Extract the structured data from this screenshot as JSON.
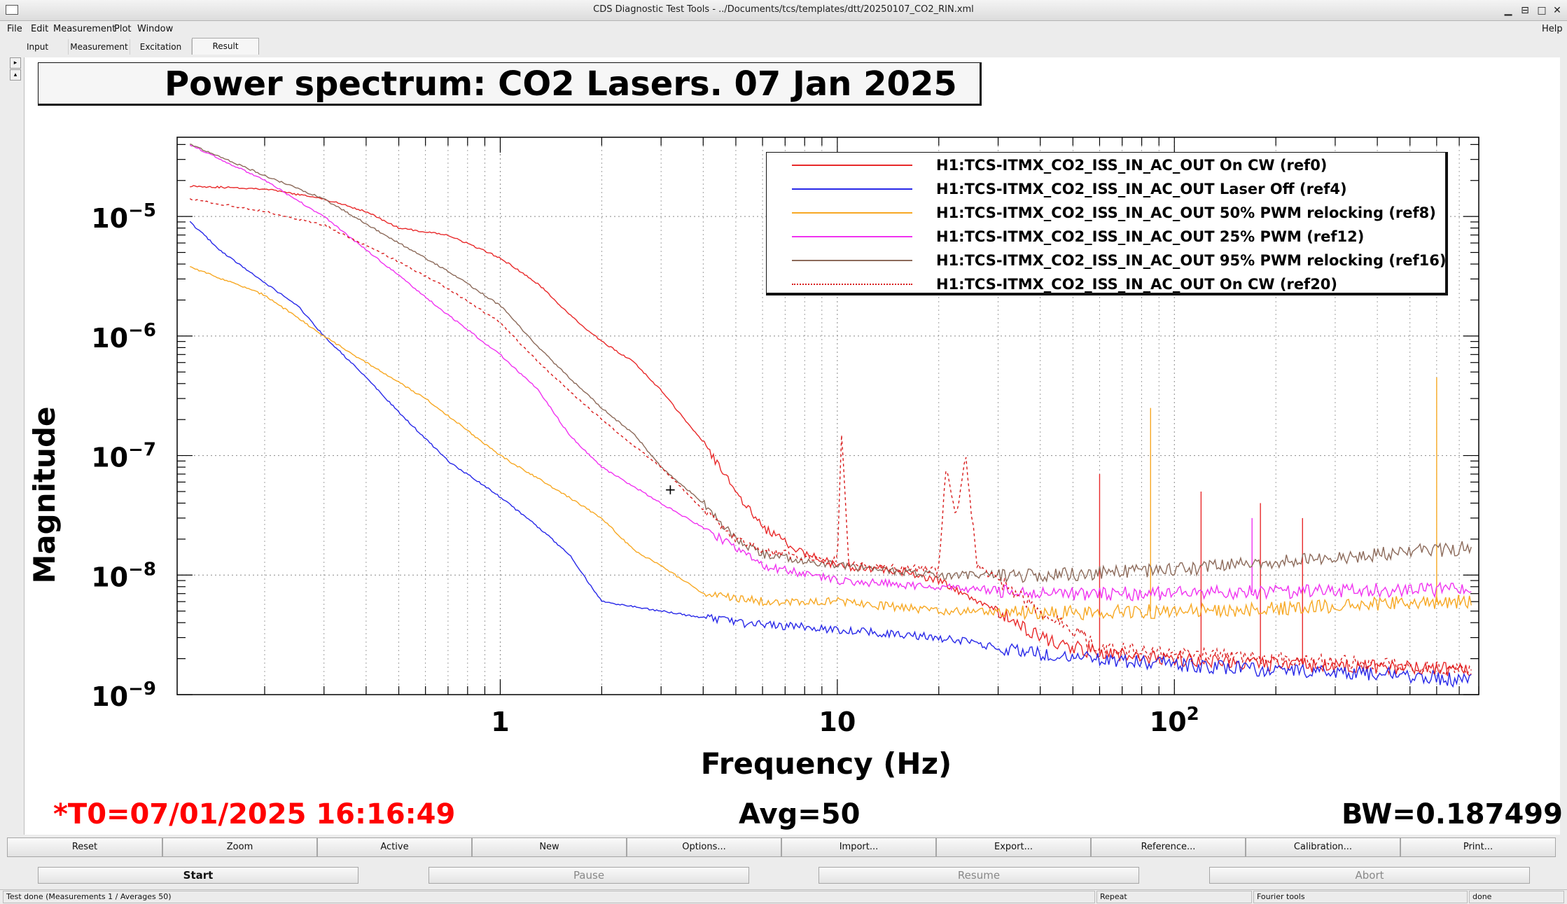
{
  "window": {
    "title": "CDS Diagnostic Test Tools - ../Documents/tcs/templates/dtt/20250107_CO2_RIN.xml"
  },
  "menu": {
    "items": [
      "File",
      "Edit",
      "Measurement",
      "Plot",
      "Window"
    ],
    "help": "Help"
  },
  "tabs": [
    "Input",
    "Measurement",
    "Excitation",
    "Result"
  ],
  "plot": {
    "title": "Power spectrum: CO2 Lasers. 07 Jan 2025",
    "t0": "*T0=07/01/2025 16:16:49",
    "avg": "Avg=50",
    "bw": "BW=0.187499"
  },
  "toolbar": [
    "Reset",
    "Zoom",
    "Active",
    "New",
    "Options...",
    "Import...",
    "Export...",
    "Reference...",
    "Calibration...",
    "Print..."
  ],
  "controls": [
    "Start",
    "Pause",
    "Resume",
    "Abort"
  ],
  "status": {
    "message": "Test done (Measurements 1 / Averages 50)",
    "mode": "Repeat",
    "tool": "Fourier tools",
    "state": "done"
  },
  "colors": {
    "ref0": "#e8292a",
    "ref4": "#2828e8",
    "ref8": "#f7a823",
    "ref12": "#f032f0",
    "ref16": "#8c6a5a",
    "ref20": "#d81c1c"
  },
  "chart_data": {
    "type": "line",
    "title": "Power spectrum: CO2 Lasers. 07 Jan 2025",
    "xlabel": "Frequency (Hz)",
    "ylabel": "Magnitude",
    "xscale": "log",
    "yscale": "log",
    "xlim": [
      0.11,
      800
    ],
    "ylim": [
      1e-09,
      4.6e-05
    ],
    "x_ticks": [
      {
        "v": 1,
        "label": "1"
      },
      {
        "v": 10,
        "label": "10"
      },
      {
        "v": 100,
        "label": "10",
        "sup": "2"
      }
    ],
    "y_ticks": [
      {
        "v": 1e-09,
        "label": "10",
        "sup": "−9"
      },
      {
        "v": 1e-08,
        "label": "10",
        "sup": "−8"
      },
      {
        "v": 1e-07,
        "label": "10",
        "sup": "−7"
      },
      {
        "v": 1e-06,
        "label": "10",
        "sup": "−6"
      },
      {
        "v": 1e-05,
        "label": "10",
        "sup": "−5"
      }
    ],
    "grid": true,
    "legend_position": "top-right",
    "series": [
      {
        "name": "H1:TCS-ITMX_CO2_ISS_IN_AC_OUT On CW (ref0)",
        "color": "#e8292a",
        "dash": "",
        "points": [
          [
            0.12,
            1.8e-05
          ],
          [
            0.2,
            1.7e-05
          ],
          [
            0.3,
            1.4e-05
          ],
          [
            0.4,
            1.1e-05
          ],
          [
            0.5,
            8e-06
          ],
          [
            0.7,
            7e-06
          ],
          [
            1.0,
            4.5e-06
          ],
          [
            1.3,
            2.7e-06
          ],
          [
            1.7,
            1.3e-06
          ],
          [
            2.0,
            9e-07
          ],
          [
            2.5,
            6e-07
          ],
          [
            3.0,
            3.5e-07
          ],
          [
            4.0,
            1.3e-07
          ],
          [
            5.0,
            5e-08
          ],
          [
            6.0,
            2.5e-08
          ],
          [
            8.0,
            1.5e-08
          ],
          [
            10.0,
            1.2e-08
          ],
          [
            15.0,
            1.1e-08
          ],
          [
            20.0,
            9e-09
          ],
          [
            30.0,
            5e-09
          ],
          [
            40.0,
            3e-09
          ],
          [
            60.0,
            2.2e-09
          ],
          [
            100.0,
            2e-09
          ],
          [
            200.0,
            1.8e-09
          ],
          [
            400.0,
            1.7e-09
          ],
          [
            760.0,
            1.6e-09
          ]
        ],
        "peaks": [
          [
            60,
            7e-08
          ],
          [
            120,
            5e-08
          ],
          [
            180,
            4e-08
          ],
          [
            240,
            3e-08
          ]
        ]
      },
      {
        "name": "H1:TCS-ITMX_CO2_ISS_IN_AC_OUT Laser Off (ref4)",
        "color": "#2828e8",
        "dash": "",
        "points": [
          [
            0.12,
            9e-06
          ],
          [
            0.15,
            5e-06
          ],
          [
            0.2,
            2.8e-06
          ],
          [
            0.25,
            1.8e-06
          ],
          [
            0.3,
            1e-06
          ],
          [
            0.4,
            4.5e-07
          ],
          [
            0.5,
            2.3e-07
          ],
          [
            0.7,
            9e-08
          ],
          [
            1.0,
            4.5e-08
          ],
          [
            1.3,
            2.5e-08
          ],
          [
            1.6,
            1.5e-08
          ],
          [
            2.0,
            6e-09
          ],
          [
            3.0,
            5e-09
          ],
          [
            5.0,
            4e-09
          ],
          [
            10.0,
            3.5e-09
          ],
          [
            20.0,
            3e-09
          ],
          [
            40.0,
            2.2e-09
          ],
          [
            60.0,
            2e-09
          ],
          [
            100.0,
            1.8e-09
          ],
          [
            200.0,
            1.6e-09
          ],
          [
            400.0,
            1.5e-09
          ],
          [
            760.0,
            1.3e-09
          ]
        ]
      },
      {
        "name": "H1:TCS-ITMX_CO2_ISS_IN_AC_OUT 50% PWM relocking  (ref8)",
        "color": "#f7a823",
        "dash": "",
        "points": [
          [
            0.12,
            3.8e-06
          ],
          [
            0.2,
            2.2e-06
          ],
          [
            0.3,
            1e-06
          ],
          [
            0.4,
            6e-07
          ],
          [
            0.6,
            3e-07
          ],
          [
            1.0,
            1e-07
          ],
          [
            1.5,
            5e-08
          ],
          [
            2.0,
            3e-08
          ],
          [
            2.5,
            1.6e-08
          ],
          [
            3.0,
            1.2e-08
          ],
          [
            4.0,
            7e-09
          ],
          [
            6.0,
            6e-09
          ],
          [
            10.0,
            6e-09
          ],
          [
            20.0,
            5e-09
          ],
          [
            40.0,
            4.8e-09
          ],
          [
            100.0,
            5e-09
          ],
          [
            200.0,
            5.2e-09
          ],
          [
            400.0,
            5.8e-09
          ],
          [
            760.0,
            6e-09
          ]
        ],
        "peaks": [
          [
            85,
            2.5e-07
          ],
          [
            600,
            4.5e-07
          ]
        ]
      },
      {
        "name": "H1:TCS-ITMX_CO2_ISS_IN_AC_OUT  25% PWM (ref12)",
        "color": "#f032f0",
        "dash": "",
        "points": [
          [
            0.12,
            4e-05
          ],
          [
            0.2,
            2e-05
          ],
          [
            0.3,
            1e-05
          ],
          [
            0.5,
            3.2e-06
          ],
          [
            0.7,
            1.5e-06
          ],
          [
            1.0,
            7e-07
          ],
          [
            1.3,
            3.5e-07
          ],
          [
            1.6,
            1.5e-07
          ],
          [
            2.0,
            8e-08
          ],
          [
            3.0,
            4e-08
          ],
          [
            4.0,
            2.5e-08
          ],
          [
            6.0,
            1.2e-08
          ],
          [
            10.0,
            9e-09
          ],
          [
            20.0,
            8e-09
          ],
          [
            40.0,
            7e-09
          ],
          [
            100.0,
            7e-09
          ],
          [
            200.0,
            7.2e-09
          ],
          [
            400.0,
            7.5e-09
          ],
          [
            760.0,
            7.5e-09
          ]
        ],
        "peaks": [
          [
            170,
            3e-08
          ]
        ]
      },
      {
        "name": "H1:TCS-ITMX_CO2_ISS_IN_AC_OUT 95% PWM relocking (ref16)",
        "color": "#8c6a5a",
        "dash": "",
        "points": [
          [
            0.12,
            4e-05
          ],
          [
            0.2,
            2.2e-05
          ],
          [
            0.3,
            1.4e-05
          ],
          [
            0.5,
            6e-06
          ],
          [
            0.7,
            3.5e-06
          ],
          [
            1.0,
            1.8e-06
          ],
          [
            1.3,
            8e-07
          ],
          [
            1.6,
            4.5e-07
          ],
          [
            2.0,
            2.5e-07
          ],
          [
            2.5,
            1.5e-07
          ],
          [
            3.0,
            8e-08
          ],
          [
            4.0,
            4e-08
          ],
          [
            5.0,
            2e-08
          ],
          [
            6.0,
            1.5e-08
          ],
          [
            10.0,
            1.2e-08
          ],
          [
            20.0,
            1e-08
          ],
          [
            40.0,
            1e-08
          ],
          [
            100.0,
            1.1e-08
          ],
          [
            200.0,
            1.3e-08
          ],
          [
            400.0,
            1.5e-08
          ],
          [
            760.0,
            1.7e-08
          ]
        ]
      },
      {
        "name": "H1:TCS-ITMX_CO2_ISS_IN_AC_OUT On CW (ref20)",
        "color": "#d81c1c",
        "dash": "4,4",
        "points": [
          [
            0.12,
            1.4e-05
          ],
          [
            0.2,
            1.1e-05
          ],
          [
            0.3,
            8.5e-06
          ],
          [
            0.5,
            4.2e-06
          ],
          [
            0.7,
            2.5e-06
          ],
          [
            1.0,
            1.3e-06
          ],
          [
            1.3,
            6e-07
          ],
          [
            1.6,
            3.5e-07
          ],
          [
            2.0,
            2e-07
          ],
          [
            2.5,
            1.2e-07
          ],
          [
            3.0,
            8e-08
          ],
          [
            4.0,
            3.5e-08
          ],
          [
            5.0,
            2e-08
          ],
          [
            6.0,
            1.6e-08
          ],
          [
            10.0,
            1.3e-08
          ],
          [
            10.3,
            1.6e-07
          ],
          [
            10.8,
            1.2e-08
          ],
          [
            20.0,
            1.1e-08
          ],
          [
            21.0,
            8e-08
          ],
          [
            22.5,
            3e-08
          ],
          [
            24.0,
            1e-07
          ],
          [
            26.0,
            1.2e-08
          ],
          [
            40.0,
            5e-09
          ],
          [
            60.0,
            2.5e-09
          ],
          [
            100.0,
            2.2e-09
          ],
          [
            200.0,
            2e-09
          ],
          [
            400.0,
            1.8e-09
          ],
          [
            760.0,
            1.6e-09
          ]
        ]
      }
    ]
  }
}
